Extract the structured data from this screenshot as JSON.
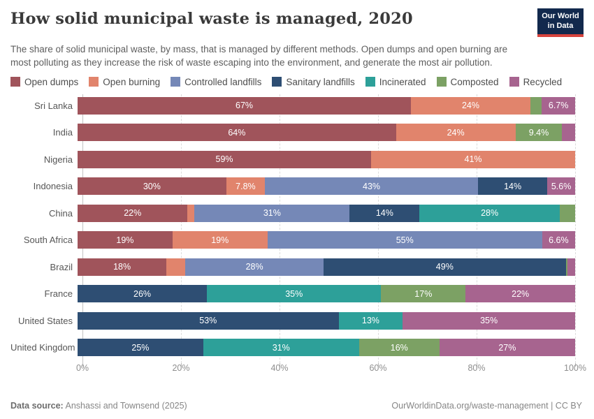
{
  "header": {
    "title": "How solid municipal waste is managed, 2020",
    "subtitle": "The share of solid municipal waste, by mass, that is managed by different methods. Open dumps and open burning are most polluting as they increase the risk of waste escaping into the environment, and generate the most air pollution.",
    "logo": {
      "line1": "Our World",
      "line2": "in Data"
    }
  },
  "legend": {
    "items": [
      {
        "label": "Open dumps",
        "color": "#a0545b"
      },
      {
        "label": "Open burning",
        "color": "#e1846c"
      },
      {
        "label": "Controlled landfills",
        "color": "#7588b7"
      },
      {
        "label": "Sanitary landfills",
        "color": "#2e4e73"
      },
      {
        "label": "Incinerated",
        "color": "#2da099"
      },
      {
        "label": "Composted",
        "color": "#7ca164"
      },
      {
        "label": "Recycled",
        "color": "#a7648f"
      }
    ]
  },
  "chart_data": {
    "type": "bar",
    "orientation": "horizontal-stacked",
    "unit": "%",
    "title": "How solid municipal waste is managed, 2020",
    "categories": [
      "Open dumps",
      "Open burning",
      "Controlled landfills",
      "Sanitary landfills",
      "Incinerated",
      "Composted",
      "Recycled"
    ],
    "colors": {
      "Open dumps": "#a0545b",
      "Open burning": "#e1846c",
      "Controlled landfills": "#7588b7",
      "Sanitary landfills": "#2e4e73",
      "Incinerated": "#2da099",
      "Composted": "#7ca164",
      "Recycled": "#a7648f"
    },
    "xlim": [
      0,
      100
    ],
    "grid": true,
    "legend_position": "top",
    "rows": [
      {
        "country": "Sri Lanka",
        "segments": [
          {
            "category": "Open dumps",
            "value": 67,
            "label": "67%"
          },
          {
            "category": "Open burning",
            "value": 24,
            "label": "24%"
          },
          {
            "category": "Composted",
            "value": 2.3,
            "label": ""
          },
          {
            "category": "Recycled",
            "value": 6.7,
            "label": "6.7%"
          }
        ]
      },
      {
        "country": "India",
        "segments": [
          {
            "category": "Open dumps",
            "value": 64,
            "label": "64%"
          },
          {
            "category": "Open burning",
            "value": 24,
            "label": "24%"
          },
          {
            "category": "Composted",
            "value": 9.4,
            "label": "9.4%"
          },
          {
            "category": "Recycled",
            "value": 2.6,
            "label": ""
          }
        ]
      },
      {
        "country": "Nigeria",
        "segments": [
          {
            "category": "Open dumps",
            "value": 59,
            "label": "59%"
          },
          {
            "category": "Open burning",
            "value": 41,
            "label": "41%"
          }
        ]
      },
      {
        "country": "Indonesia",
        "segments": [
          {
            "category": "Open dumps",
            "value": 30,
            "label": "30%"
          },
          {
            "category": "Open burning",
            "value": 7.8,
            "label": "7.8%"
          },
          {
            "category": "Controlled landfills",
            "value": 43,
            "label": "43%"
          },
          {
            "category": "Sanitary landfills",
            "value": 14,
            "label": "14%"
          },
          {
            "category": "Recycled",
            "value": 5.6,
            "label": "5.6%"
          }
        ]
      },
      {
        "country": "China",
        "segments": [
          {
            "category": "Open dumps",
            "value": 22,
            "label": "22%"
          },
          {
            "category": "Open burning",
            "value": 1.4,
            "label": ""
          },
          {
            "category": "Controlled landfills",
            "value": 31,
            "label": "31%"
          },
          {
            "category": "Sanitary landfills",
            "value": 14,
            "label": "14%"
          },
          {
            "category": "Incinerated",
            "value": 28,
            "label": "28%"
          },
          {
            "category": "Composted",
            "value": 3.1,
            "label": ""
          }
        ]
      },
      {
        "country": "South Africa",
        "segments": [
          {
            "category": "Open dumps",
            "value": 19,
            "label": "19%"
          },
          {
            "category": "Open burning",
            "value": 19,
            "label": "19%"
          },
          {
            "category": "Controlled landfills",
            "value": 55,
            "label": "55%"
          },
          {
            "category": "Recycled",
            "value": 6.6,
            "label": "6.6%"
          }
        ]
      },
      {
        "country": "Brazil",
        "segments": [
          {
            "category": "Open dumps",
            "value": 18,
            "label": "18%"
          },
          {
            "category": "Open burning",
            "value": 3.8,
            "label": ""
          },
          {
            "category": "Controlled landfills",
            "value": 28,
            "label": "28%"
          },
          {
            "category": "Sanitary landfills",
            "value": 49,
            "label": "49%"
          },
          {
            "category": "Composted",
            "value": 0.4,
            "label": ""
          },
          {
            "category": "Recycled",
            "value": 1.5,
            "label": ""
          }
        ]
      },
      {
        "country": "France",
        "segments": [
          {
            "category": "Sanitary landfills",
            "value": 26,
            "label": "26%"
          },
          {
            "category": "Incinerated",
            "value": 35,
            "label": "35%"
          },
          {
            "category": "Composted",
            "value": 17,
            "label": "17%"
          },
          {
            "category": "Recycled",
            "value": 22,
            "label": "22%"
          }
        ]
      },
      {
        "country": "United States",
        "segments": [
          {
            "category": "Sanitary landfills",
            "value": 53,
            "label": "53%"
          },
          {
            "category": "Incinerated",
            "value": 13,
            "label": "13%"
          },
          {
            "category": "Recycled",
            "value": 35,
            "label": "35%"
          }
        ]
      },
      {
        "country": "United Kingdom",
        "segments": [
          {
            "category": "Sanitary landfills",
            "value": 25,
            "label": "25%"
          },
          {
            "category": "Incinerated",
            "value": 31,
            "label": "31%"
          },
          {
            "category": "Composted",
            "value": 16,
            "label": "16%"
          },
          {
            "category": "Recycled",
            "value": 27,
            "label": "27%"
          }
        ]
      }
    ]
  },
  "axis": {
    "tick_values": [
      0,
      20,
      40,
      60,
      80,
      100
    ],
    "tick_labels": [
      "0%",
      "20%",
      "40%",
      "60%",
      "80%",
      "100%"
    ]
  },
  "footer": {
    "source_label": "Data source:",
    "source_text": " Anshassi and Townsend (2025)",
    "rights": "OurWorldinData.org/waste-management | CC BY"
  }
}
